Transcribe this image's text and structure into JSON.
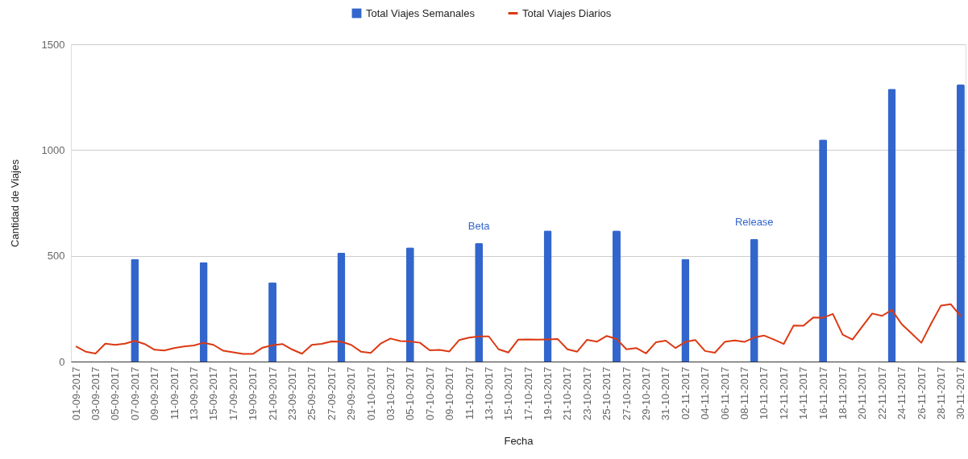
{
  "chart_data": {
    "type": "bar",
    "categories": [
      "01-09-2017",
      null,
      "03-09-2017",
      null,
      "05-09-2017",
      null,
      "07-09-2017",
      null,
      "09-09-2017",
      null,
      "11-09-2017",
      null,
      "13-09-2017",
      null,
      "15-09-2017",
      null,
      "17-09-2017",
      null,
      "19-09-2017",
      null,
      "21-09-2017",
      null,
      "23-09-2017",
      null,
      "25-09-2017",
      null,
      "27-09-2017",
      null,
      "29-09-2017",
      null,
      "01-10-2017",
      null,
      "03-10-2017",
      null,
      "05-10-2017",
      null,
      "07-10-2017",
      null,
      "09-10-2017",
      null,
      "11-10-2017",
      null,
      "13-10-2017",
      null,
      "15-10-2017",
      null,
      "17-10-2017",
      null,
      "19-10-2017",
      null,
      "21-10-2017",
      null,
      "23-10-2017",
      null,
      "25-10-2017",
      null,
      "27-10-2017",
      null,
      "29-10-2017",
      null,
      "31-10-2017",
      null,
      "02-11-2017",
      null,
      "04-11-2017",
      null,
      "06-11-2017",
      null,
      "08-11-2017",
      null,
      "10-11-2017",
      null,
      "12-11-2017",
      null,
      "14-11-2017",
      null,
      "16-11-2017",
      null,
      "18-11-2017",
      null,
      "20-11-2017",
      null,
      "22-11-2017",
      null,
      "24-11-2017",
      null,
      "26-11-2017",
      null,
      "28-11-2017",
      null,
      "30-11-2017"
    ],
    "series": [
      {
        "name": "Total Viajes Semanales",
        "color": "#3366cc",
        "values": [
          null,
          null,
          null,
          null,
          null,
          null,
          485,
          null,
          null,
          null,
          null,
          null,
          null,
          470,
          null,
          null,
          null,
          null,
          null,
          null,
          375,
          null,
          null,
          null,
          null,
          null,
          null,
          515,
          null,
          null,
          null,
          null,
          null,
          null,
          540,
          null,
          null,
          null,
          null,
          null,
          null,
          560,
          null,
          null,
          null,
          null,
          null,
          null,
          620,
          null,
          null,
          null,
          null,
          null,
          null,
          620,
          null,
          null,
          null,
          null,
          null,
          null,
          485,
          null,
          null,
          null,
          null,
          null,
          null,
          580,
          null,
          null,
          null,
          null,
          null,
          null,
          1050,
          null,
          null,
          null,
          null,
          null,
          null,
          1290,
          null,
          null,
          null,
          null,
          null,
          null,
          1310
        ],
        "value_labels": [
          null,
          null,
          null,
          null,
          null,
          null,
          null,
          null,
          null,
          null,
          null,
          null,
          null,
          null,
          null,
          null,
          null,
          null,
          null,
          null,
          null,
          null,
          null,
          null,
          null,
          null,
          null,
          null,
          null,
          null,
          null,
          null,
          null,
          null,
          null,
          null,
          null,
          null,
          null,
          null,
          null,
          "Beta",
          null,
          null,
          null,
          null,
          null,
          null,
          null,
          null,
          null,
          null,
          null,
          null,
          null,
          null,
          null,
          null,
          null,
          null,
          null,
          null,
          null,
          null,
          null,
          null,
          null,
          null,
          null,
          "Release",
          null,
          null,
          null,
          null,
          null,
          null,
          null,
          null,
          null,
          null,
          null,
          null,
          null,
          null,
          null,
          null,
          null,
          null,
          null,
          null,
          null
        ]
      },
      {
        "name": "Total Viajes Diarios",
        "type": "line",
        "color": "#dc3912",
        "values": [
          72,
          47,
          38,
          85,
          79,
          85,
          98,
          83,
          56,
          52,
          64,
          71,
          76,
          89,
          79,
          51,
          44,
          36,
          36,
          66,
          77,
          83,
          57,
          37,
          79,
          84,
          95,
          94,
          79,
          47,
          41,
          85,
          109,
          97,
          95,
          89,
          53,
          55,
          48,
          102,
          113,
          119,
          119,
          58,
          43,
          104,
          105,
          104,
          105,
          107,
          58,
          47,
          103,
          94,
          121,
          107,
          58,
          64,
          39,
          91,
          99,
          64,
          93,
          102,
          50,
          42,
          93,
          100,
          93,
          114,
          123,
          104,
          83,
          170,
          169,
          208,
          207,
          225,
          127,
          104,
          166,
          227,
          216,
          244,
          177,
          133,
          89,
          180,
          265,
          271,
          215
        ]
      }
    ],
    "xlabel": "Fecha",
    "ylabel": "Cantidad de Viajes",
    "ylim": [
      0,
      1500
    ],
    "yticks": [
      0,
      500,
      1000,
      1500
    ],
    "grid": "y",
    "legend": "top"
  }
}
